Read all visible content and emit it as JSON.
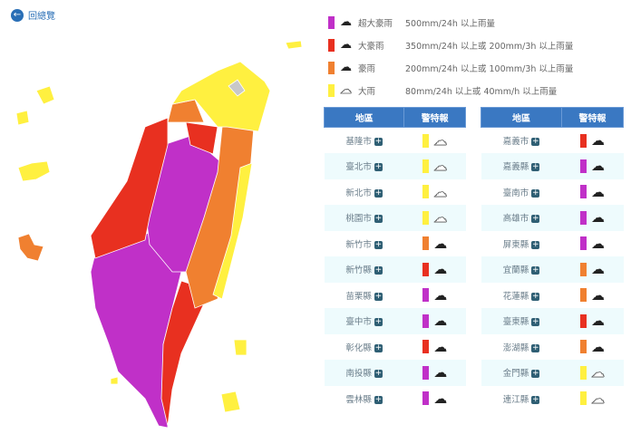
{
  "back": {
    "label": "回總覽",
    "icon": "arrow-left-icon"
  },
  "colors": {
    "超大豪雨": "#c030c8",
    "大豪雨": "#e83020",
    "豪雨": "#f08030",
    "大雨": "#fff040"
  },
  "legend": [
    {
      "level": "超大豪雨",
      "desc": "500mm/24h 以上雨量",
      "color": "#c030c8",
      "icon": "heavy-rain-icon"
    },
    {
      "level": "大豪雨",
      "desc": "350mm/24h 以上或 200mm/3h 以上雨量",
      "color": "#e83020",
      "icon": "heavy-rain-icon"
    },
    {
      "level": "豪雨",
      "desc": "200mm/24h 以上或 100mm/3h 以上雨量",
      "color": "#f08030",
      "icon": "heavy-rain-icon"
    },
    {
      "level": "大雨",
      "desc": "80mm/24h 以上或 40mm/h 以上雨量",
      "color": "#fff040",
      "icon": "rain-outline-icon"
    }
  ],
  "table": {
    "col_region": "地區",
    "col_warning": "警特報"
  },
  "left": [
    {
      "name": "基隆市",
      "level": "大雨"
    },
    {
      "name": "臺北市",
      "level": "大雨"
    },
    {
      "name": "新北市",
      "level": "大雨"
    },
    {
      "name": "桃園市",
      "level": "大雨"
    },
    {
      "name": "新竹市",
      "level": "豪雨"
    },
    {
      "name": "新竹縣",
      "level": "大豪雨"
    },
    {
      "name": "苗栗縣",
      "level": "超大豪雨"
    },
    {
      "name": "臺中市",
      "level": "超大豪雨"
    },
    {
      "name": "彰化縣",
      "level": "大豪雨"
    },
    {
      "name": "南投縣",
      "level": "超大豪雨"
    },
    {
      "name": "雲林縣",
      "level": "超大豪雨"
    }
  ],
  "right": [
    {
      "name": "嘉義市",
      "level": "大豪雨"
    },
    {
      "name": "嘉義縣",
      "level": "超大豪雨"
    },
    {
      "name": "臺南市",
      "level": "超大豪雨"
    },
    {
      "name": "高雄市",
      "level": "超大豪雨"
    },
    {
      "name": "屏東縣",
      "level": "超大豪雨"
    },
    {
      "name": "宜蘭縣",
      "level": "豪雨"
    },
    {
      "name": "花蓮縣",
      "level": "豪雨"
    },
    {
      "name": "臺東縣",
      "level": "大豪雨"
    },
    {
      "name": "澎湖縣",
      "level": "豪雨"
    },
    {
      "name": "金門縣",
      "level": "大雨"
    },
    {
      "name": "連江縣",
      "level": "大雨"
    }
  ]
}
